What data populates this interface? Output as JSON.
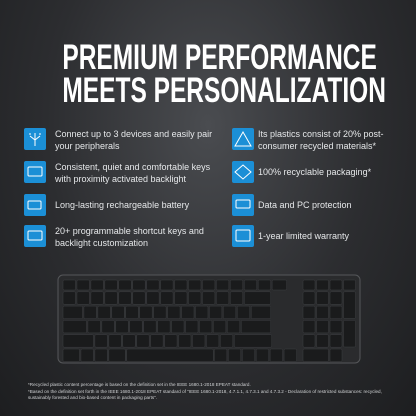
{
  "header": {
    "title_lines": [
      "PREMIUM PERFORMANCE",
      "MEETS PERSONALIZATION"
    ]
  },
  "features": {
    "left": [
      "Connect up to 3 devices and easily pair your peripherals",
      "Consistent, quiet and comfortable keys with proximity activated backlight",
      "Long-lasting rechargeable battery",
      "20+ programmable shortcut keys and backlight customization"
    ],
    "right": [
      "Its plastics consist of 20% post-consumer recycled materials*",
      "100% recyclable packaging*",
      "Data and PC protection",
      "1-year limited warranty"
    ]
  },
  "footnotes": [
    "*Recycled plastic content percentage is based on the definition set in the IEEE 1680.1-2018 EPEAT standard.",
    "*Based on the definition set forth in the IEEE 1680.1-2018 EPEAT standard of \"IEEE 1680.1-2018, 4.7.1.1, 4.7.3.1 and 4.7.3.2 - Declaration of restricted substances: recycled, sustainably forested and bio-based content in packaging parts\"."
  ]
}
